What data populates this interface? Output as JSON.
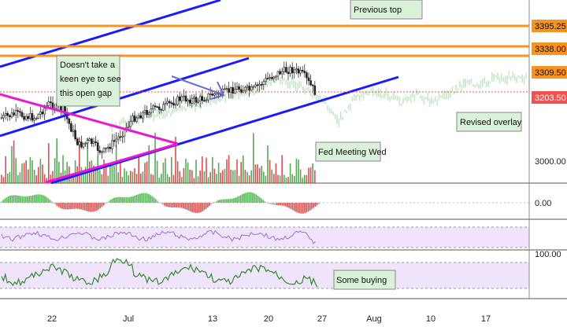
{
  "chart_data": {
    "type": "candlestick",
    "x_labels": [
      "22",
      "Jul",
      "13",
      "20",
      "27",
      "Aug",
      "10",
      "17"
    ],
    "price_scale_labels": [
      "3000.00"
    ],
    "price_levels": [
      {
        "label": "3395.25",
        "value": 3395.25,
        "color": "#f7931e"
      },
      {
        "label": "3338.00",
        "value": 3338.0,
        "color": "#f7931e"
      },
      {
        "label": "3309.50",
        "value": 3309.5,
        "color": "#f7931e"
      },
      {
        "label": "3203.50",
        "value": 3203.5,
        "color": "#ef5350"
      }
    ],
    "last_price": 3203.5,
    "annotations": [
      {
        "id": "gap",
        "text_lines": [
          "Doesn't take a",
          "keen eye to see",
          "this open gap"
        ]
      },
      {
        "id": "top",
        "text_lines": [
          "Previous top"
        ]
      },
      {
        "id": "overlay",
        "text_lines": [
          "Revised overlay"
        ]
      },
      {
        "id": "fed",
        "text_lines": [
          "Fed Meeting Wed"
        ]
      },
      {
        "id": "buying",
        "text_lines": [
          "Some buying"
        ]
      }
    ],
    "indicators": [
      {
        "id": "macd",
        "label": "0.00"
      },
      {
        "id": "rsi",
        "label": ""
      },
      {
        "id": "stoch",
        "label": "100.00"
      }
    ],
    "colors": {
      "up": "#26a69a",
      "down": "#ef5350",
      "trendline": "#1a1aff",
      "triangle": "#e81ad0",
      "level": "#f7931e",
      "rsi": "#9c6fcf",
      "stoch": "#2e8b2e",
      "overlay": "#c8e6c9",
      "note_bg": "#d9f2d9"
    }
  }
}
